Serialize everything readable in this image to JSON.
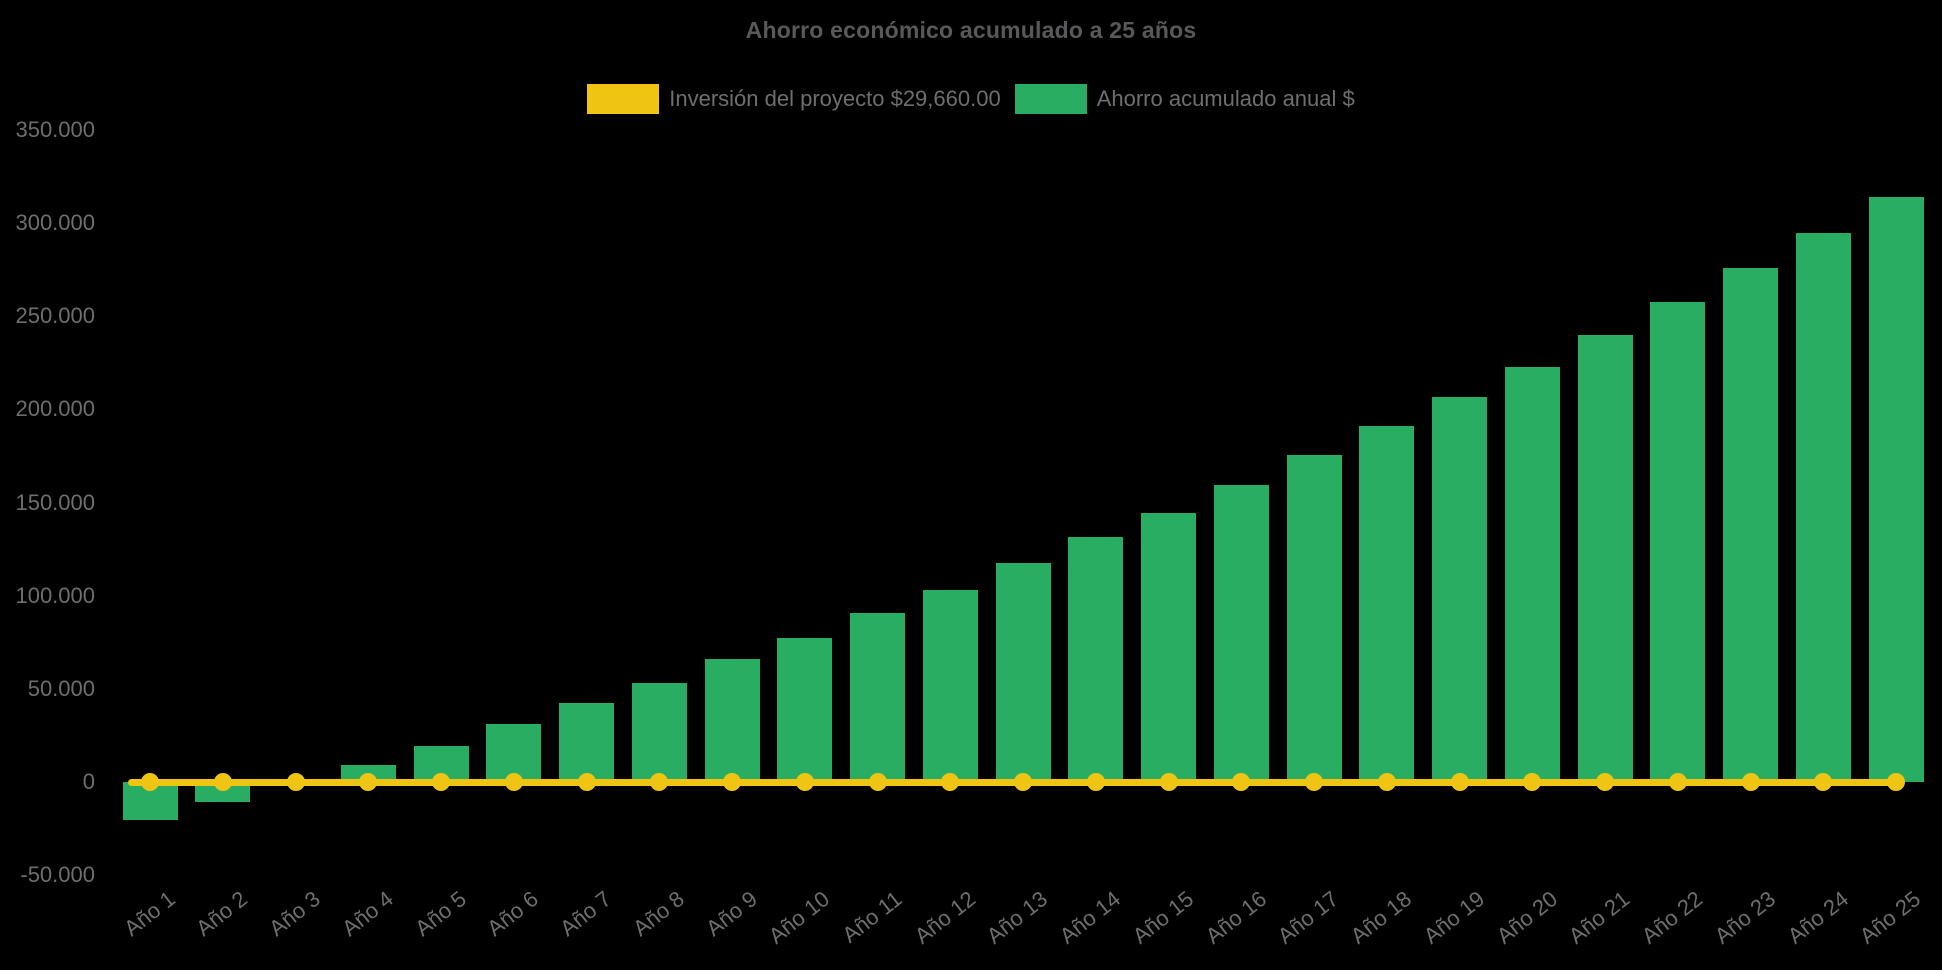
{
  "page": {
    "background": "#000000"
  },
  "chart_data": {
    "type": "bar",
    "title": "Ahorro económico acumulado a 25 años",
    "title_color": "#58595B",
    "legend_position": "top",
    "legend": [
      {
        "label": "Inversión del proyecto $29,660.00",
        "color": "#F0C413",
        "series_type": "line"
      },
      {
        "label": "Ahorro acumulado anual $",
        "color": "#28AD62",
        "series_type": "bar"
      }
    ],
    "categories": [
      "Año 1",
      "Año 2",
      "Año 3",
      "Año 4",
      "Año 5",
      "Año 6",
      "Año 7",
      "Año 8",
      "Año 9",
      "Año 10",
      "Año 11",
      "Año 12",
      "Año 13",
      "Año 14",
      "Año 15",
      "Año 16",
      "Año 17",
      "Año 18",
      "Año 19",
      "Año 20",
      "Año 21",
      "Año 22",
      "Año 23",
      "Año 24",
      "Año 25"
    ],
    "series": [
      {
        "name": "Inversión del proyecto $29,660.00",
        "type": "line",
        "color": "#F0C413",
        "note": "flat break-even line drawn at y = 0 with a point marker at every year",
        "values": [
          0,
          0,
          0,
          0,
          0,
          0,
          0,
          0,
          0,
          0,
          0,
          0,
          0,
          0,
          0,
          0,
          0,
          0,
          0,
          0,
          0,
          0,
          0,
          0,
          0
        ]
      },
      {
        "name": "Ahorro acumulado anual $",
        "type": "bar",
        "color": "#28AD62",
        "values": [
          -20500,
          -11000,
          -1200,
          9300,
          19400,
          31000,
          42200,
          53100,
          66000,
          77500,
          90700,
          103300,
          117600,
          131500,
          144600,
          159600,
          175400,
          190900,
          206700,
          222800,
          240100,
          257600,
          276100,
          294700,
          314000
        ]
      }
    ],
    "xlabel": "",
    "ylabel": "",
    "ylim": [
      -50000,
      350000
    ],
    "y_ticks": [
      {
        "value": 350000,
        "label": "350.000"
      },
      {
        "value": 300000,
        "label": "300.000"
      },
      {
        "value": 250000,
        "label": "250.000"
      },
      {
        "value": 200000,
        "label": "200.000"
      },
      {
        "value": 150000,
        "label": "150.000"
      },
      {
        "value": 100000,
        "label": "100.000"
      },
      {
        "value": 50000,
        "label": "50.000"
      },
      {
        "value": 0,
        "label": "0"
      },
      {
        "value": -50000,
        "label": "-50.000"
      }
    ],
    "tick_color": "#6E6E70",
    "grid": "hidden (dark gridlines invisible on black background)"
  }
}
